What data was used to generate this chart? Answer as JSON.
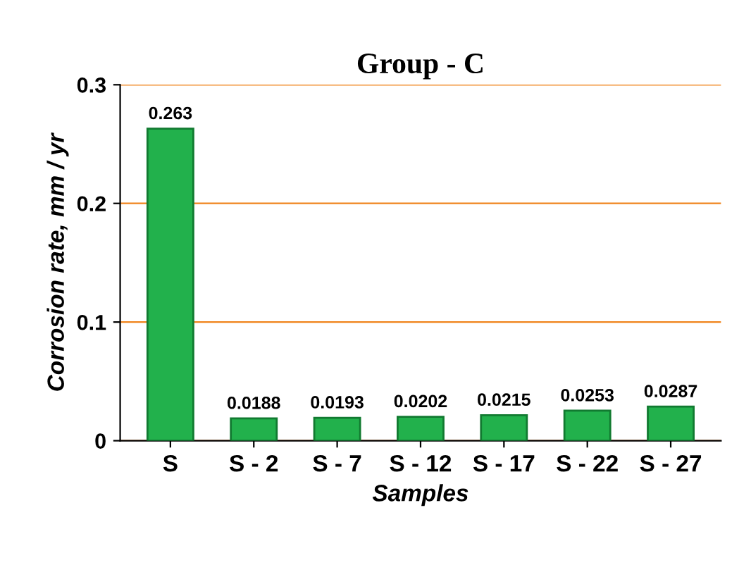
{
  "chart_data": {
    "type": "bar",
    "title": "Group - C",
    "xlabel": "Samples",
    "ylabel": "Corrosion rate, mm / yr",
    "categories": [
      "S",
      "S - 2",
      "S - 7",
      "S - 12",
      "S - 17",
      "S - 22",
      "S - 27"
    ],
    "values": [
      0.263,
      0.0188,
      0.0193,
      0.0202,
      0.0215,
      0.0253,
      0.0287
    ],
    "color": "#22b14c",
    "ylim": [
      0,
      0.3
    ],
    "yticks": [
      0,
      0.1,
      0.2,
      0.3
    ],
    "grid": "y",
    "data_labels": true,
    "legend": false
  }
}
